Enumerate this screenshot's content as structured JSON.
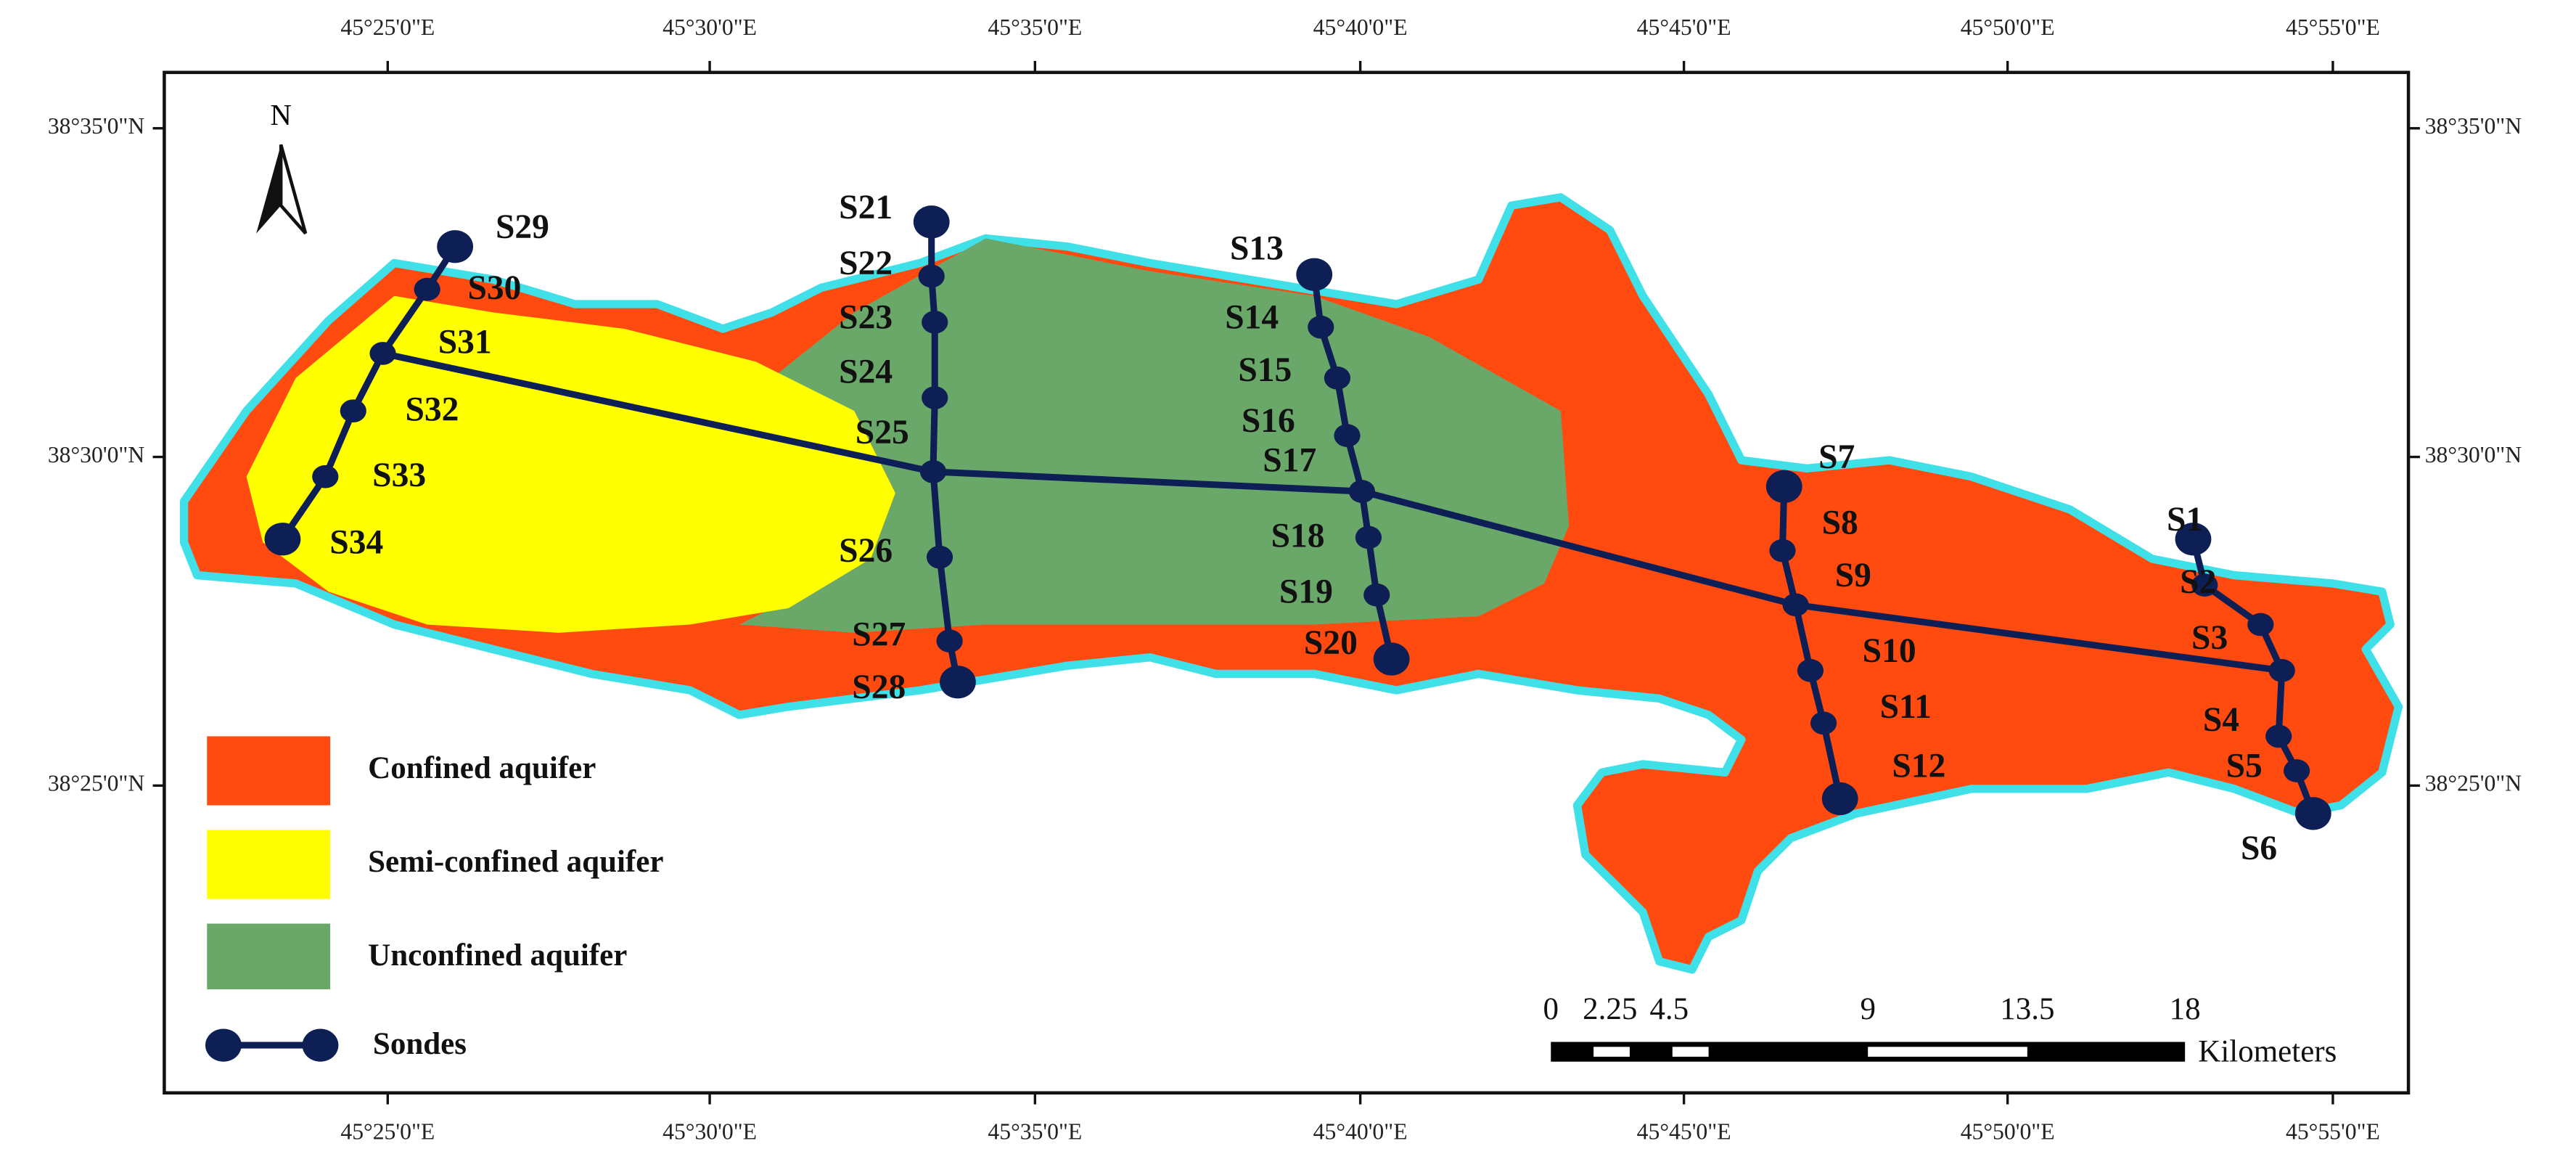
{
  "map": {
    "north": "N",
    "lon_labels": [
      "45°25'0\"E",
      "45°30'0\"E",
      "45°35'0\"E",
      "45°40'0\"E",
      "45°45'0\"E",
      "45°50'0\"E",
      "45°55'0\"E"
    ],
    "lat_labels": [
      "38°35'0\"N",
      "38°30'0\"N",
      "38°25'0\"N"
    ],
    "sondes": [
      "S1",
      "S2",
      "S3",
      "S4",
      "S5",
      "S6",
      "S7",
      "S8",
      "S9",
      "S10",
      "S11",
      "S12",
      "S13",
      "S14",
      "S15",
      "S16",
      "S17",
      "S18",
      "S19",
      "S20",
      "S21",
      "S22",
      "S23",
      "S24",
      "S25",
      "S26",
      "S27",
      "S28",
      "S29",
      "S30",
      "S31",
      "S32",
      "S33",
      "S34"
    ],
    "legend": [
      "Confined aquifer",
      "Semi-confined aquifer",
      "Unconfined aquifer",
      "Sondes"
    ],
    "scale_bar": {
      "ticks": [
        "0",
        "2.25",
        "4.5",
        "9",
        "13.5",
        "18"
      ],
      "unit": "Kilometers"
    }
  }
}
